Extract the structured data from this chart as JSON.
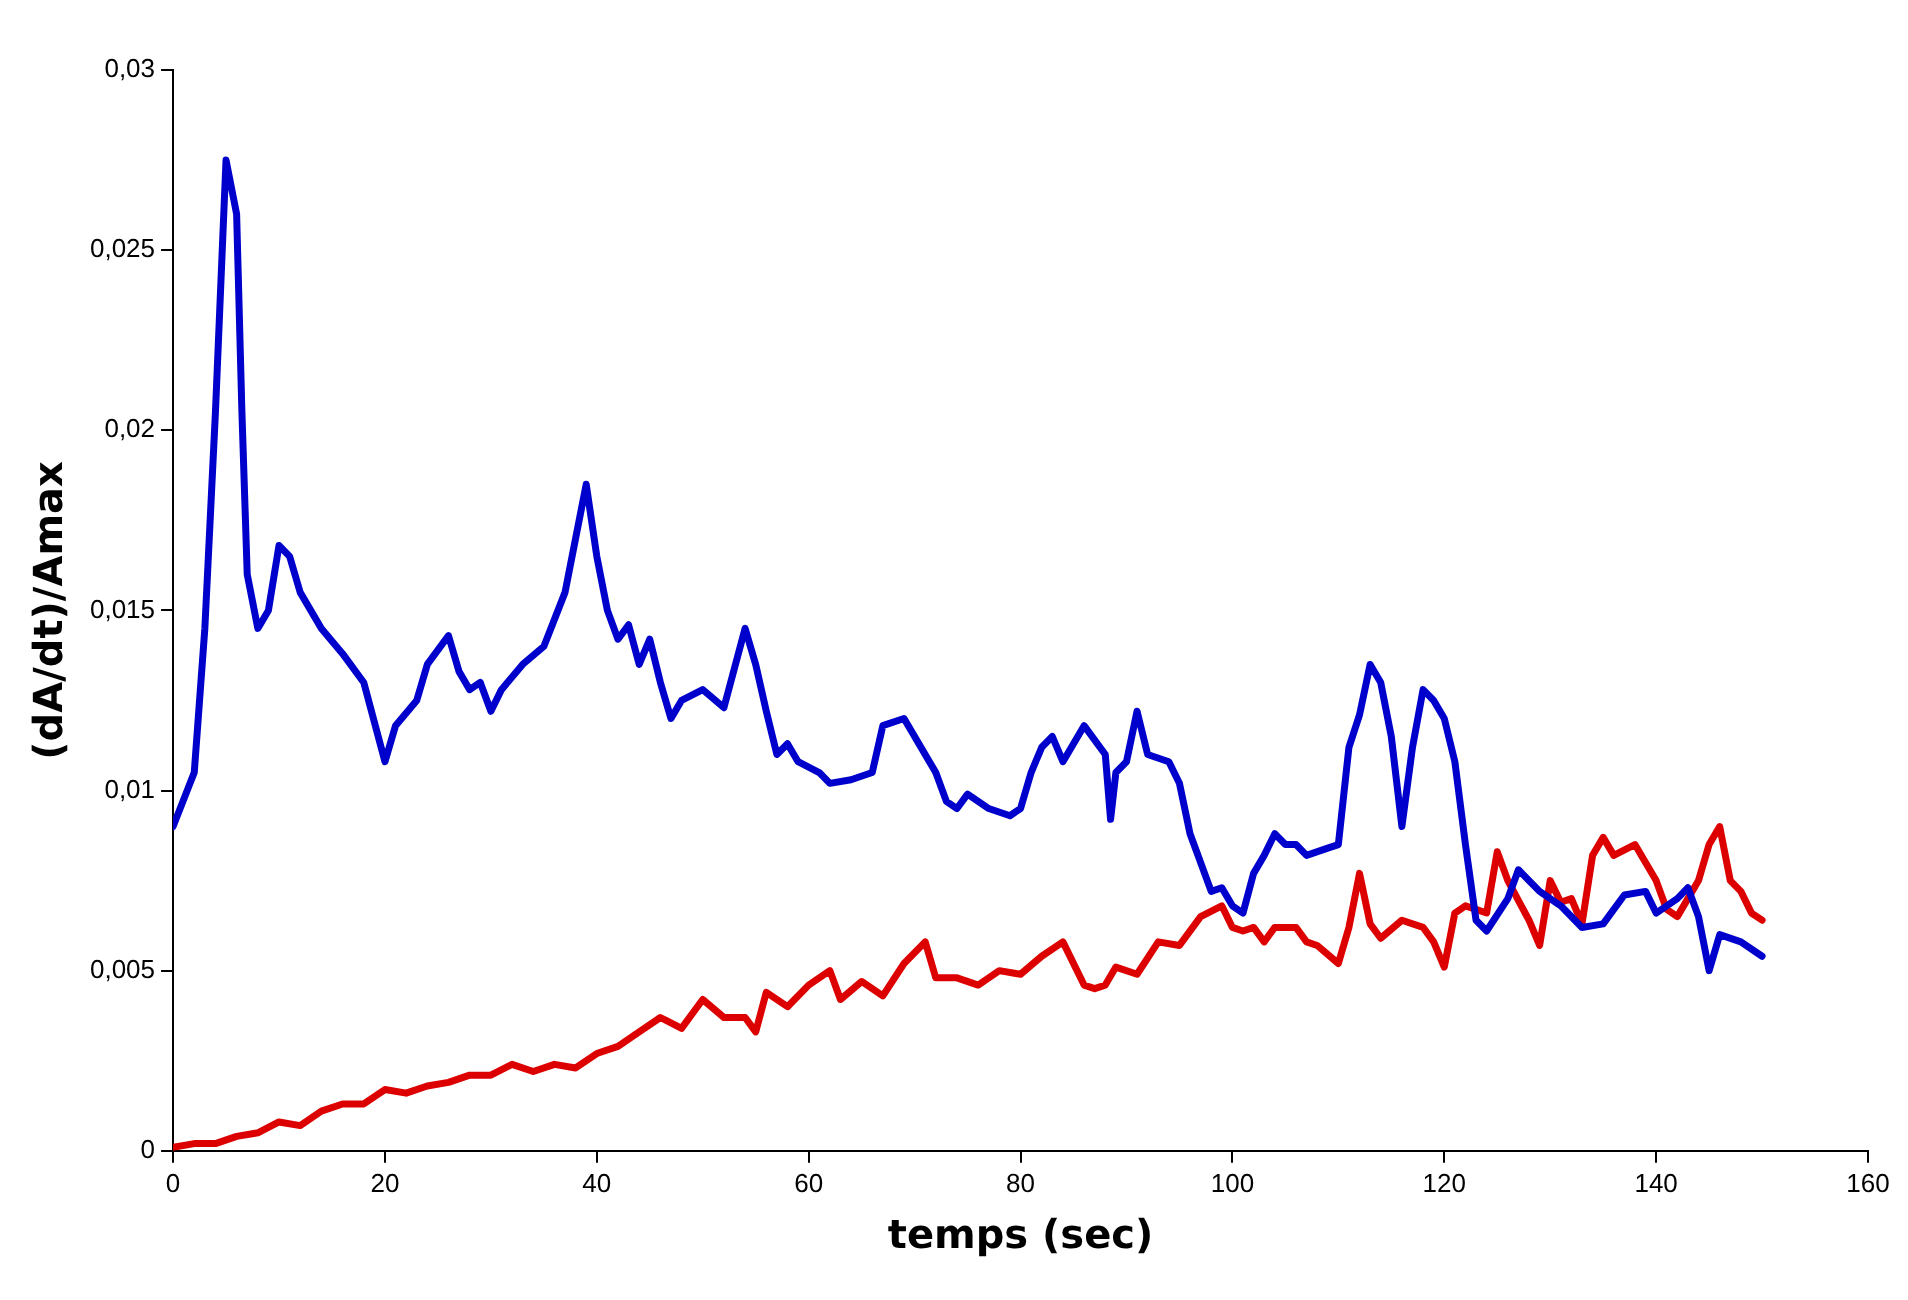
{
  "chart_data": {
    "type": "line",
    "xlabel": "temps (sec)",
    "ylabel": "(dA/dt)/Amax",
    "xlim": [
      0,
      160
    ],
    "xticks": [
      0,
      20,
      40,
      60,
      80,
      100,
      120,
      140,
      160
    ],
    "ylim": [
      0,
      0.03
    ],
    "yticks": [
      {
        "value": 0,
        "label": "0"
      },
      {
        "value": 0.005,
        "label": "0,005"
      },
      {
        "value": 0.01,
        "label": "0,01"
      },
      {
        "value": 0.015,
        "label": "0,015"
      },
      {
        "value": 0.02,
        "label": "0,02"
      },
      {
        "value": 0.025,
        "label": "0,025"
      },
      {
        "value": 0.03,
        "label": "0,03"
      }
    ],
    "grid": false,
    "legend": false,
    "marker": "none",
    "line_style": "solid",
    "series": [
      {
        "color": "#0000cc",
        "x": [
          0,
          2,
          3,
          4,
          5,
          6,
          6.5,
          7,
          8,
          9,
          10,
          11,
          12,
          14,
          16,
          18,
          20,
          21,
          23,
          24,
          26,
          27,
          28,
          29,
          30,
          31,
          33,
          35,
          37,
          38,
          39,
          40,
          41,
          42,
          43,
          44,
          45,
          46,
          47,
          48,
          50,
          52,
          54,
          55,
          56,
          57,
          58,
          59,
          61,
          62,
          64,
          66,
          67,
          69,
          70,
          72,
          73,
          74,
          75,
          77,
          79,
          80,
          81,
          82,
          83,
          84,
          86,
          88,
          88.5,
          89,
          90,
          91,
          92,
          94,
          95,
          96,
          98,
          99,
          100,
          101,
          102,
          103,
          104,
          105,
          106,
          107,
          109,
          110,
          111,
          112,
          113,
          114,
          115,
          116,
          117,
          118,
          119,
          120,
          121,
          122,
          123,
          124,
          126,
          127,
          129,
          131,
          133,
          135,
          137,
          139,
          140,
          142,
          143,
          144,
          145,
          146,
          148,
          150
        ],
        "values": [
          0.009,
          0.0105,
          0.0145,
          0.0205,
          0.0275,
          0.026,
          0.0205,
          0.016,
          0.0145,
          0.015,
          0.0168,
          0.0165,
          0.0155,
          0.0145,
          0.0138,
          0.013,
          0.0108,
          0.0118,
          0.0125,
          0.0135,
          0.0143,
          0.0133,
          0.0128,
          0.013,
          0.0122,
          0.0128,
          0.0135,
          0.014,
          0.0155,
          0.017,
          0.0185,
          0.0165,
          0.015,
          0.0142,
          0.0146,
          0.0135,
          0.0142,
          0.013,
          0.012,
          0.0125,
          0.0128,
          0.0123,
          0.0145,
          0.0135,
          0.0122,
          0.011,
          0.0113,
          0.0108,
          0.0105,
          0.0102,
          0.0103,
          0.0105,
          0.0118,
          0.012,
          0.0115,
          0.0105,
          0.0097,
          0.0095,
          0.0099,
          0.0095,
          0.0093,
          0.0095,
          0.0105,
          0.0112,
          0.0115,
          0.0108,
          0.0118,
          0.011,
          0.0092,
          0.0105,
          0.0108,
          0.0122,
          0.011,
          0.0108,
          0.0102,
          0.0088,
          0.0072,
          0.0073,
          0.0068,
          0.0066,
          0.0077,
          0.0082,
          0.0088,
          0.0085,
          0.0085,
          0.0082,
          0.0084,
          0.0085,
          0.0112,
          0.0121,
          0.0135,
          0.013,
          0.0115,
          0.009,
          0.0112,
          0.0128,
          0.0125,
          0.012,
          0.0108,
          0.0085,
          0.0064,
          0.0061,
          0.007,
          0.0078,
          0.0072,
          0.0068,
          0.0062,
          0.0063,
          0.0071,
          0.0072,
          0.0066,
          0.007,
          0.0073,
          0.0065,
          0.005,
          0.006,
          0.0058,
          0.0054
        ]
      },
      {
        "color": "#dd0000",
        "x": [
          0,
          2,
          4,
          6,
          8,
          10,
          12,
          14,
          16,
          18,
          20,
          22,
          24,
          26,
          28,
          30,
          32,
          34,
          36,
          38,
          40,
          42,
          44,
          46,
          48,
          50,
          52,
          54,
          55,
          56,
          58,
          60,
          62,
          63,
          65,
          67,
          69,
          71,
          72,
          74,
          76,
          78,
          80,
          82,
          84,
          86,
          87,
          88,
          89,
          91,
          93,
          95,
          97,
          99,
          100,
          101,
          102,
          103,
          104,
          106,
          107,
          108,
          110,
          111,
          112,
          113,
          114,
          116,
          118,
          119,
          120,
          121,
          122,
          124,
          125,
          126,
          128,
          129,
          130,
          131,
          132,
          133,
          134,
          135,
          136,
          138,
          140,
          141,
          142,
          144,
          145,
          146,
          147,
          148,
          149,
          150
        ],
        "values": [
          0.0001,
          0.0002,
          0.0002,
          0.0004,
          0.0005,
          0.0008,
          0.0007,
          0.0011,
          0.0013,
          0.0013,
          0.0017,
          0.0016,
          0.0018,
          0.0019,
          0.0021,
          0.0021,
          0.0024,
          0.0022,
          0.0024,
          0.0023,
          0.0027,
          0.0029,
          0.0033,
          0.0037,
          0.0034,
          0.0042,
          0.0037,
          0.0037,
          0.0033,
          0.0044,
          0.004,
          0.0046,
          0.005,
          0.0042,
          0.0047,
          0.0043,
          0.0052,
          0.0058,
          0.0048,
          0.0048,
          0.0046,
          0.005,
          0.0049,
          0.0054,
          0.0058,
          0.0046,
          0.0045,
          0.0046,
          0.0051,
          0.0049,
          0.0058,
          0.0057,
          0.0065,
          0.0068,
          0.0062,
          0.0061,
          0.0062,
          0.0058,
          0.0062,
          0.0062,
          0.0058,
          0.0057,
          0.0052,
          0.0062,
          0.0077,
          0.0063,
          0.0059,
          0.0064,
          0.0062,
          0.0058,
          0.0051,
          0.0066,
          0.0068,
          0.0066,
          0.0083,
          0.0075,
          0.0064,
          0.0057,
          0.0075,
          0.0069,
          0.007,
          0.0063,
          0.0082,
          0.0087,
          0.0082,
          0.0085,
          0.0075,
          0.0067,
          0.0065,
          0.0075,
          0.0085,
          0.009,
          0.0075,
          0.0072,
          0.0066,
          0.0064
        ]
      }
    ]
  }
}
